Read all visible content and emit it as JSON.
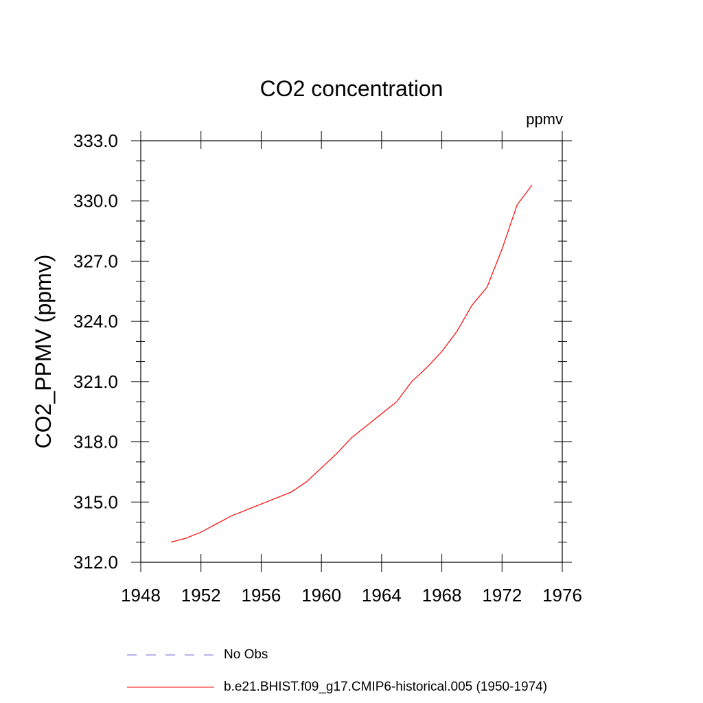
{
  "chart_data": {
    "type": "line",
    "title": "CO2 concentration",
    "units_label": "ppmv",
    "ylabel": "CO2_PPMV  (ppmv)",
    "xlabel": "",
    "xlim": [
      1948,
      1976
    ],
    "ylim": [
      312.0,
      333.0
    ],
    "x_ticks": [
      1948,
      1952,
      1956,
      1960,
      1964,
      1968,
      1972,
      1976
    ],
    "x_tick_labels": [
      "1948",
      "1952",
      "1956",
      "1960",
      "1964",
      "1968",
      "1972",
      "1976"
    ],
    "y_ticks": [
      312.0,
      315.0,
      318.0,
      321.0,
      324.0,
      327.0,
      330.0,
      333.0
    ],
    "y_tick_labels": [
      "312.0",
      "315.0",
      "318.0",
      "321.0",
      "324.0",
      "327.0",
      "330.0",
      "333.0"
    ],
    "grid": false,
    "legend_position": "bottom",
    "series": [
      {
        "name": "No Obs",
        "color": "#6a6ad0",
        "dash": "dashed",
        "x": [],
        "y": []
      },
      {
        "name": "b.e21.BHIST.f09_g17.CMIP6-historical.005 (1950-1974)",
        "color": "#ff0000",
        "dash": "solid",
        "x": [
          1950,
          1951,
          1952,
          1953,
          1954,
          1955,
          1956,
          1957,
          1958,
          1959,
          1960,
          1961,
          1962,
          1963,
          1964,
          1965,
          1966,
          1967,
          1968,
          1969,
          1970,
          1971,
          1972,
          1973,
          1974
        ],
        "y": [
          313.0,
          313.2,
          313.5,
          313.9,
          314.3,
          314.6,
          314.9,
          315.2,
          315.5,
          316.0,
          316.7,
          317.4,
          318.2,
          318.8,
          319.4,
          320.0,
          321.0,
          321.7,
          322.5,
          323.5,
          324.8,
          325.7,
          327.6,
          329.8,
          330.8
        ]
      }
    ]
  }
}
